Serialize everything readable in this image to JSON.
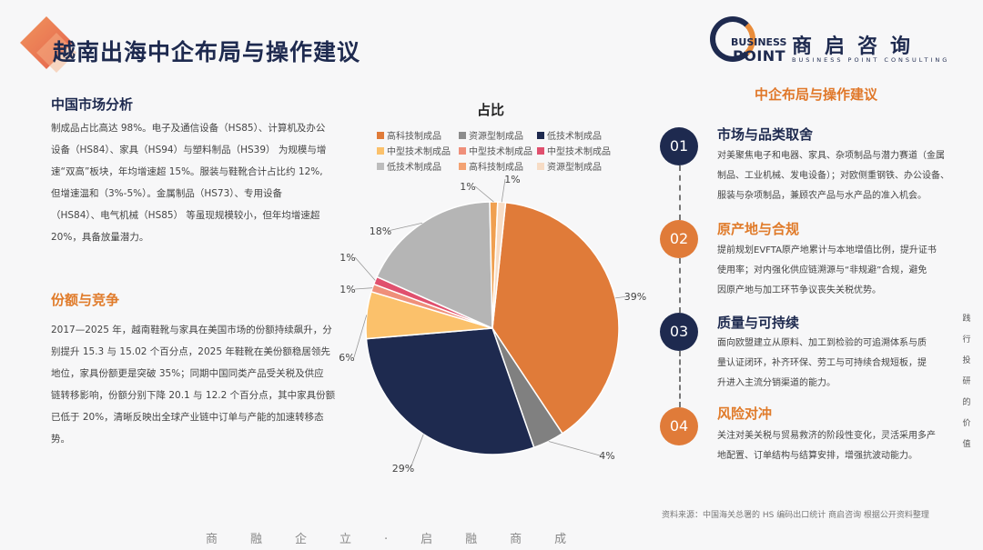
{
  "header": {
    "title": "越南出海中企布局与操作建议"
  },
  "logo": {
    "word1": "BUSINESS",
    "word2": "POINT",
    "cn": "商启咨询",
    "en": "BUSINESS POINT CONSULTING"
  },
  "left": {
    "market": {
      "heading": "中国市场分析",
      "lines": [
        "制成品占比高达 98%。电子及通信设备（HS85）、计算机及办公",
        "设备（HS84）、家具（HS94）与塑料制品（HS39） 为规模与增",
        "速“双高”板块，年均增速超 15%。服装与鞋靴合计占比约 12%,",
        "但增速温和（3%-5%）。金属制品（HS73）、专用设备",
        "（HS84）、电气机械（HS85） 等虽现规模较小，但年均增速超",
        "20%，具备放量潜力。"
      ]
    },
    "share": {
      "heading": "份额与竞争",
      "lines": [
        "2017—2025 年，越南鞋靴与家具在美国市场的份额持续飙升，分",
        "别提升 15.3 与 15.02 个百分点，2025 年鞋靴在美份额稳居领先",
        "地位，家具份额更是突破 35%；同期中国同类产品受关税及供应",
        "链转移影响，份额分别下降 20.1 与 12.2 个百分点，其中家具份额",
        "已低于 20%，清晰反映出全球产业链中订单与产能的加速转移态",
        "势。"
      ]
    }
  },
  "chart_data": {
    "type": "pie",
    "title": "占比",
    "legend": [
      {
        "label": "高科技制成品",
        "color": "#e07b39"
      },
      {
        "label": "资源型制成品",
        "color": "#8c8c8c"
      },
      {
        "label": "低技术制成品",
        "color": "#1e2a4f"
      },
      {
        "label": "中型技术制成品",
        "color": "#fbc16b"
      },
      {
        "label": "中型技术制成品",
        "color": "#ef8f7a"
      },
      {
        "label": "中型技术制成品",
        "color": "#e0506e"
      },
      {
        "label": "低技术制成品",
        "color": "#bdbdbd"
      },
      {
        "label": "高科技制成品",
        "color": "#f3a273"
      },
      {
        "label": "资源型制成品",
        "color": "#f7dcc5"
      }
    ],
    "slices": [
      {
        "value": 39,
        "label": "39%",
        "color": "#e07b39"
      },
      {
        "value": 4,
        "label": "4%",
        "color": "#808080"
      },
      {
        "value": 29,
        "label": "29%",
        "color": "#1e2a4f"
      },
      {
        "value": 6,
        "label": "6%",
        "color": "#fbc16b"
      },
      {
        "value": 1,
        "label": "1%",
        "color": "#ef8f7a"
      },
      {
        "value": 1,
        "label": "1%",
        "color": "#e0506e"
      },
      {
        "value": 18,
        "label": "18%",
        "color": "#b5b5b5"
      },
      {
        "value": 1,
        "label": "1%",
        "color": "#f0a050"
      },
      {
        "value": 1,
        "label": "1%",
        "color": "#f7dcc5"
      }
    ]
  },
  "right": {
    "heading": "中企布局与操作建议",
    "steps": [
      {
        "num": "01",
        "title": "市场与品类取舍",
        "lines": [
          "对美聚焦电子和电器、家具、杂项制品与潜力赛道（金属",
          "制品、工业机械、发电设备）；对欧侧重钢铁、办公设备、",
          "服装与杂项制品，兼顾农产品与水产品的准入机会。"
        ]
      },
      {
        "num": "02",
        "title": "原产地与合规",
        "lines": [
          "提前规划EVFTA原产地累计与本地增值比例，提升证书",
          "使用率；对内强化供应链溯源与“非规避”合规，避免",
          "因原产地与加工环节争议丧失关税优势。"
        ]
      },
      {
        "num": "03",
        "title": "质量与可持续",
        "lines": [
          "面向欧盟建立从原料、加工到检验的可追溯体系与质",
          "量认证闭环，补齐环保、劳工与可持续合规短板，提",
          "升进入主流分销渠道的能力。"
        ]
      },
      {
        "num": "04",
        "title": "风险对冲",
        "lines": [
          "关注对美关税与贸易救济的阶段性变化，灵活采用多产",
          "地配置、订单结构与结算安排，增强抗波动能力。"
        ]
      }
    ]
  },
  "side_text": [
    "践",
    "行",
    "投",
    "研",
    "的",
    "价",
    "值"
  ],
  "source": "资料来源：中国海关总署的 HS 编码出口统计 商启咨询 根据公开资料整理",
  "footer": "商融企立·启融商成"
}
